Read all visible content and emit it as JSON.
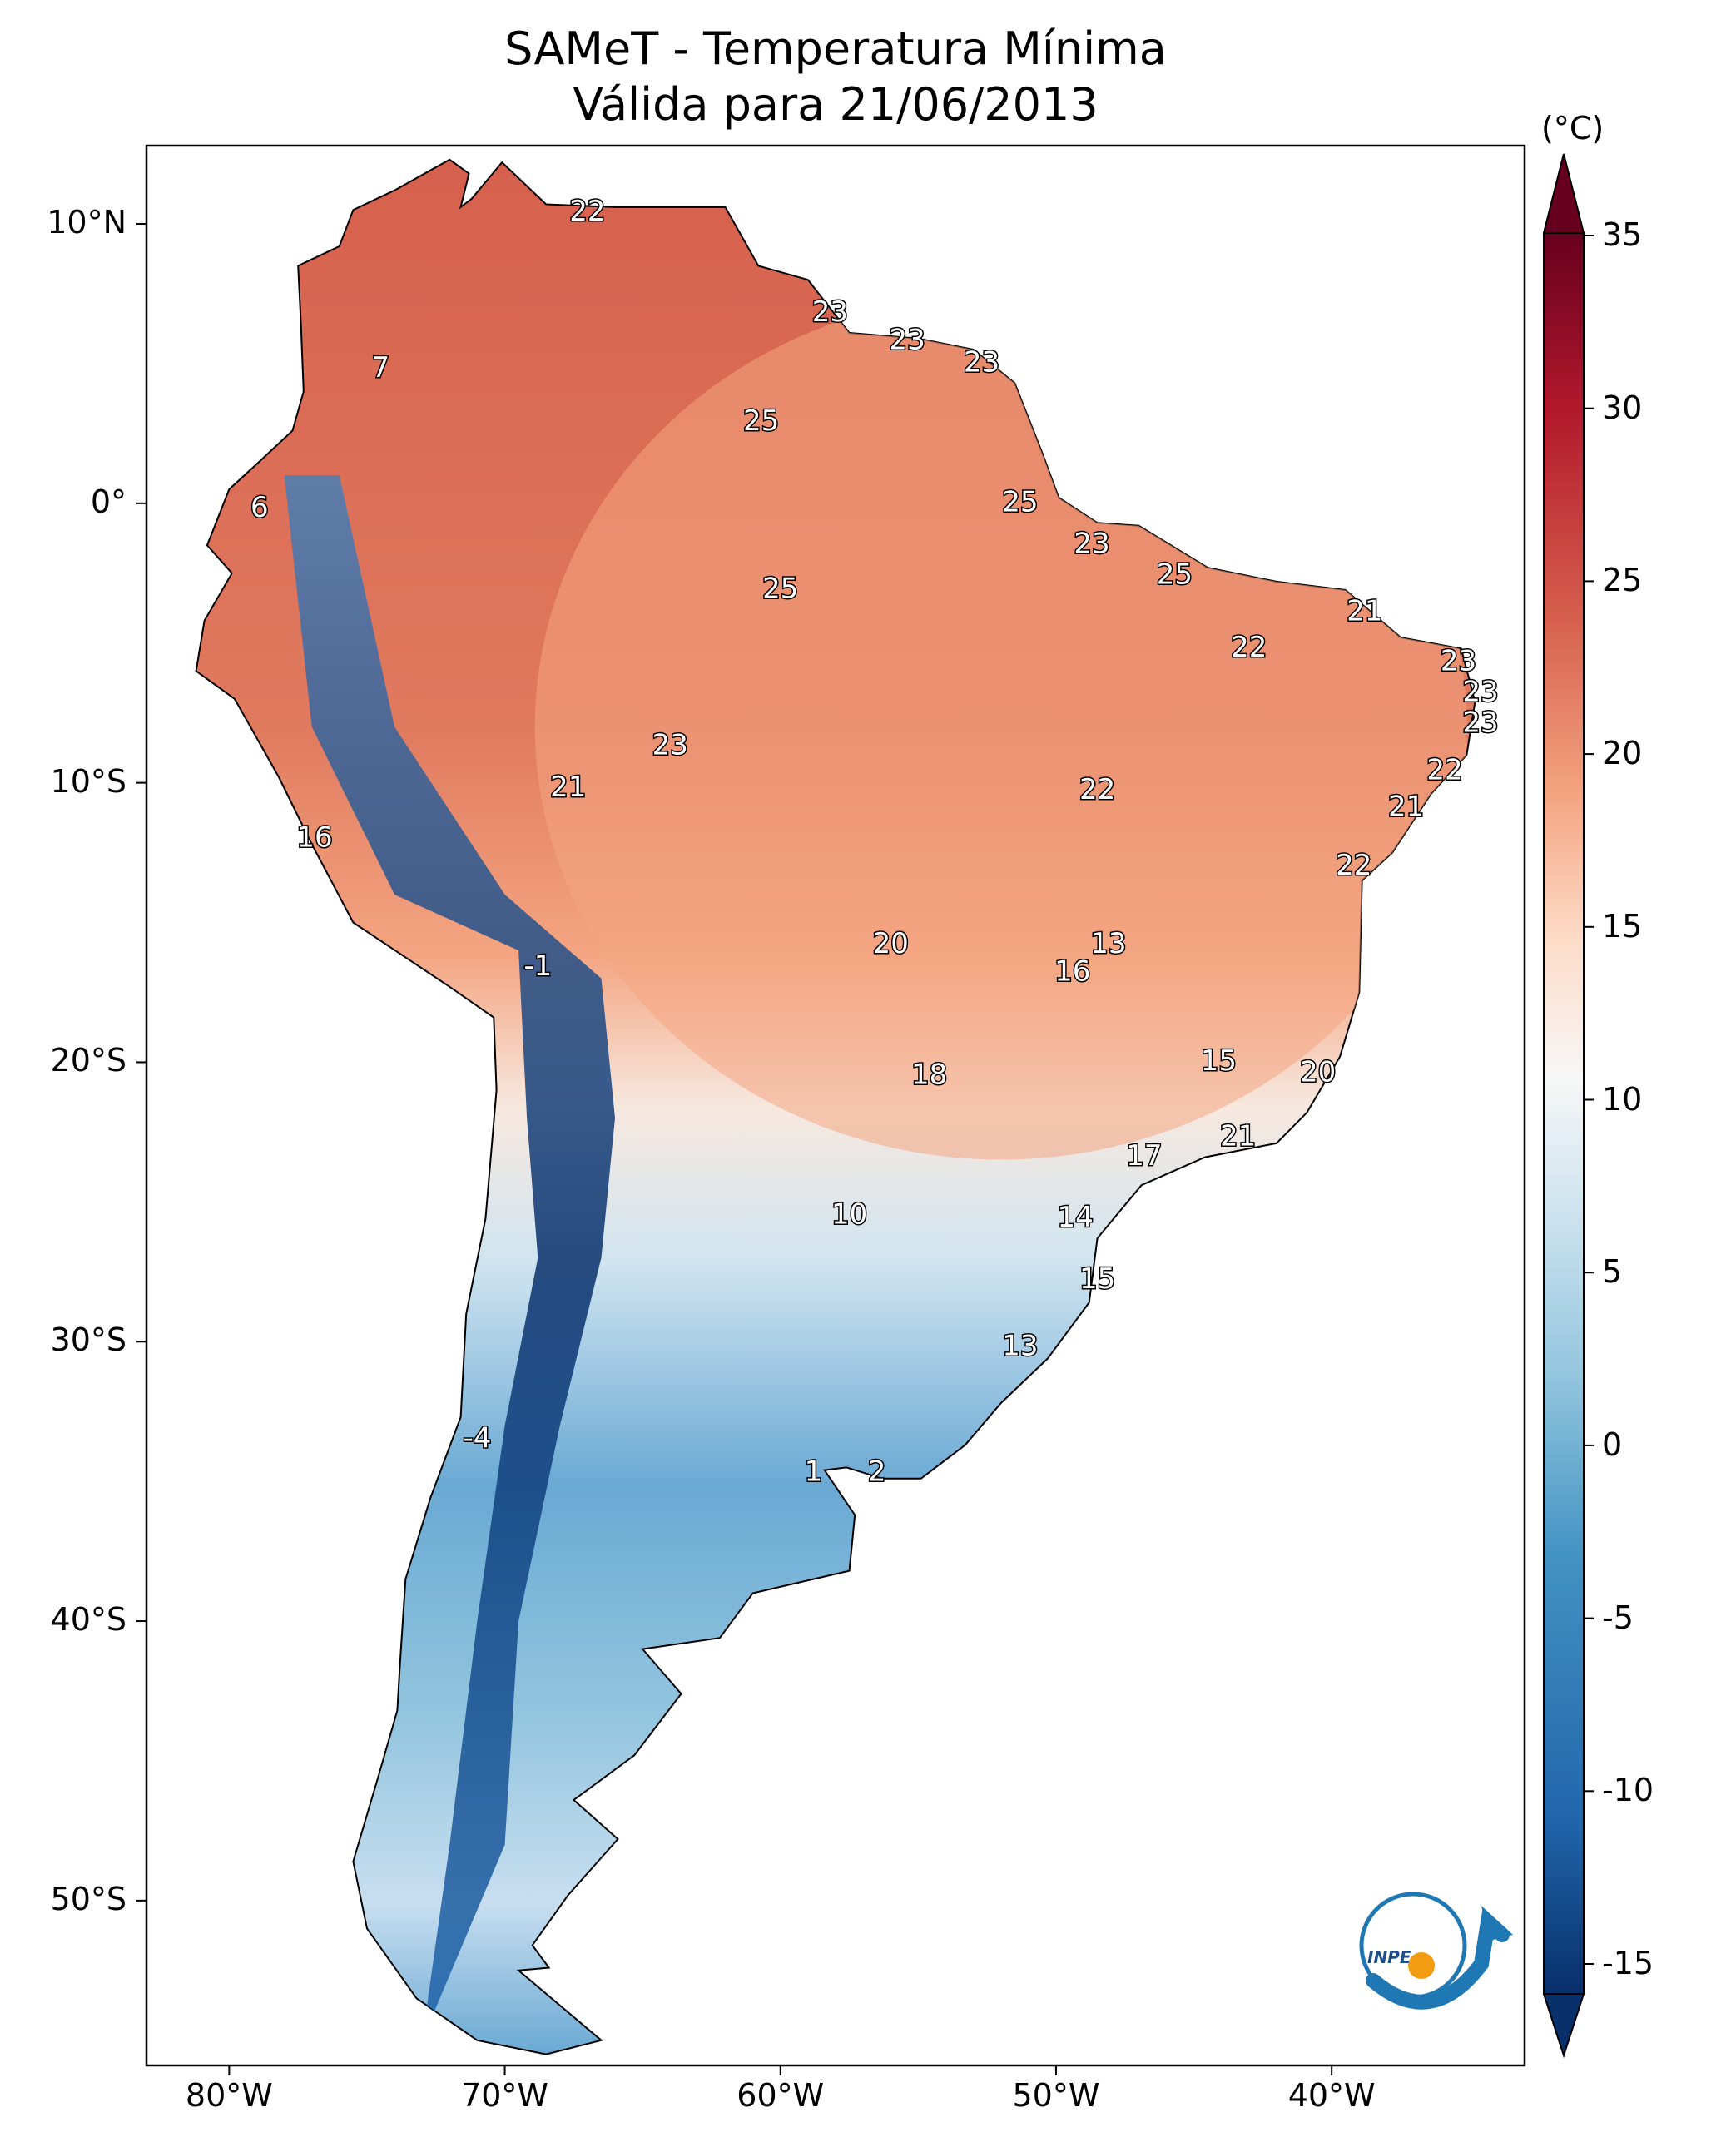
{
  "title": "SAMeT - Temperatura Mínima",
  "subtitle": "Válida para 21/06/2013",
  "colorbar": {
    "unit_label": "(°C)",
    "ticks": [
      "35",
      "30",
      "25",
      "20",
      "15",
      "10",
      "5",
      "0",
      "-5",
      "-10",
      "-15"
    ],
    "range": [
      -15,
      35
    ],
    "colors": [
      "#08306b",
      "#2166ac",
      "#4393c3",
      "#92c5de",
      "#d1e5f0",
      "#f7f7f7",
      "#fddbc7",
      "#f4a582",
      "#d6604d",
      "#b2182b",
      "#67001f"
    ]
  },
  "axes": {
    "lat_labels": [
      "10°N",
      "0°",
      "10°S",
      "20°S",
      "30°S",
      "40°S",
      "50°S"
    ],
    "lon_labels": [
      "80°W",
      "70°W",
      "60°W",
      "50°W",
      "40°W"
    ],
    "extent": {
      "lon": [
        -83,
        -33
      ],
      "lat": [
        -55.9,
        12.8
      ]
    }
  },
  "map_labels": [
    {
      "text": "22",
      "lon": -67.0,
      "lat": 10.4
    },
    {
      "text": "7",
      "lon": -74.5,
      "lat": 4.8
    },
    {
      "text": "23",
      "lon": -58.2,
      "lat": 6.8
    },
    {
      "text": "23",
      "lon": -55.4,
      "lat": 5.8
    },
    {
      "text": "23",
      "lon": -52.7,
      "lat": 5.0
    },
    {
      "text": "25",
      "lon": -60.7,
      "lat": 2.9
    },
    {
      "text": "6",
      "lon": -78.9,
      "lat": -0.2
    },
    {
      "text": "25",
      "lon": -51.3,
      "lat": 0.0
    },
    {
      "text": "23",
      "lon": -48.7,
      "lat": -1.5
    },
    {
      "text": "25",
      "lon": -45.7,
      "lat": -2.6
    },
    {
      "text": "25",
      "lon": -60.0,
      "lat": -3.1
    },
    {
      "text": "21",
      "lon": -38.8,
      "lat": -3.9
    },
    {
      "text": "22",
      "lon": -43.0,
      "lat": -5.2
    },
    {
      "text": "23",
      "lon": -35.4,
      "lat": -5.7
    },
    {
      "text": "23",
      "lon": -34.6,
      "lat": -6.8
    },
    {
      "text": "23",
      "lon": -34.6,
      "lat": -7.9
    },
    {
      "text": "23",
      "lon": -64.0,
      "lat": -8.7
    },
    {
      "text": "22",
      "lon": -35.9,
      "lat": -9.6
    },
    {
      "text": "21",
      "lon": -67.7,
      "lat": -10.2
    },
    {
      "text": "22",
      "lon": -48.5,
      "lat": -10.3
    },
    {
      "text": "21",
      "lon": -37.3,
      "lat": -10.9
    },
    {
      "text": "16",
      "lon": -76.9,
      "lat": -12.0
    },
    {
      "text": "22",
      "lon": -39.2,
      "lat": -13.0
    },
    {
      "text": "20",
      "lon": -56.0,
      "lat": -15.8
    },
    {
      "text": "13",
      "lon": -48.1,
      "lat": -15.8
    },
    {
      "text": "16",
      "lon": -49.4,
      "lat": -16.8
    },
    {
      "text": "-1",
      "lon": -68.8,
      "lat": -16.6
    },
    {
      "text": "15",
      "lon": -44.1,
      "lat": -20.0
    },
    {
      "text": "20",
      "lon": -40.5,
      "lat": -20.4
    },
    {
      "text": "18",
      "lon": -54.6,
      "lat": -20.5
    },
    {
      "text": "21",
      "lon": -43.4,
      "lat": -22.7
    },
    {
      "text": "17",
      "lon": -46.8,
      "lat": -23.4
    },
    {
      "text": "10",
      "lon": -57.5,
      "lat": -25.5
    },
    {
      "text": "14",
      "lon": -49.3,
      "lat": -25.6
    },
    {
      "text": "15",
      "lon": -48.5,
      "lat": -27.8
    },
    {
      "text": "13",
      "lon": -51.3,
      "lat": -30.2
    },
    {
      "text": "-4",
      "lon": -71.0,
      "lat": -33.5
    },
    {
      "text": "1",
      "lon": -58.8,
      "lat": -34.7
    },
    {
      "text": "2",
      "lon": -56.5,
      "lat": -34.7
    }
  ],
  "logo": {
    "text": "INPE"
  }
}
